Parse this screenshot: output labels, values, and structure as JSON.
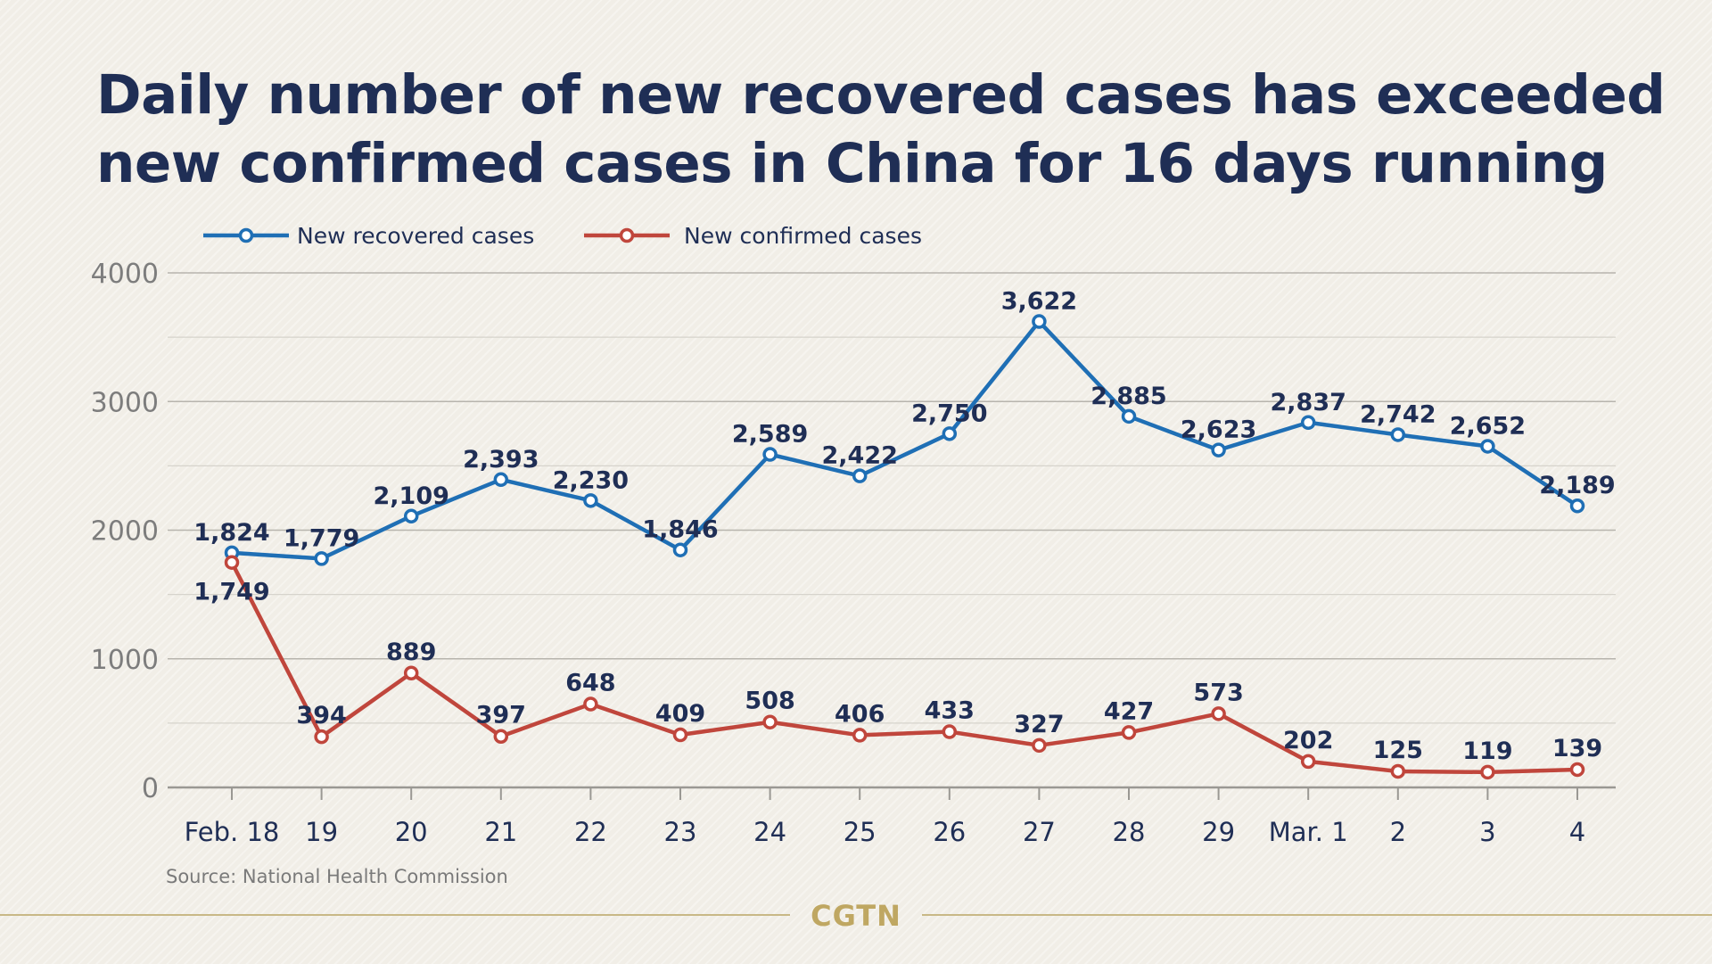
{
  "title_lines": [
    "Daily number of new recovered cases has exceeded",
    "new confirmed cases in China for 16 days running"
  ],
  "source": "Source: National Health Commission",
  "brand": "CGTN",
  "colors": {
    "recovered": "#1f6fb5",
    "confirmed": "#c0463c",
    "title": "#1f2e55",
    "brand": "#bfa762"
  },
  "chart_data": {
    "type": "line",
    "title": "Daily number of new recovered cases has exceeded new confirmed cases in China for 16 days running",
    "xlabel": "",
    "ylabel": "",
    "categories": [
      "Feb. 18",
      "19",
      "20",
      "21",
      "22",
      "23",
      "24",
      "25",
      "26",
      "27",
      "28",
      "29",
      "Mar. 1",
      "2",
      "3",
      "4"
    ],
    "ylim": [
      0,
      4000
    ],
    "yticks": [
      0,
      1000,
      2000,
      3000,
      4000
    ],
    "ytick_labels": [
      "0",
      "1000",
      "2000",
      "3000",
      "4000"
    ],
    "grid": true,
    "legend_position": "top-left",
    "series": [
      {
        "name": "New recovered cases",
        "color": "#1f6fb5",
        "values": [
          1824,
          1779,
          2109,
          2393,
          2230,
          1846,
          2589,
          2422,
          2750,
          3622,
          2885,
          2623,
          2837,
          2742,
          2652,
          2189
        ],
        "labels": [
          "1,824",
          "1,779",
          "2,109",
          "2,393",
          "2,230",
          "1,846",
          "2,589",
          "2,422",
          "2,750",
          "3,622",
          "2,885",
          "2,623",
          "2,837",
          "2,742",
          "2,652",
          "2,189"
        ]
      },
      {
        "name": "New confirmed cases",
        "color": "#c0463c",
        "values": [
          1749,
          394,
          889,
          397,
          648,
          409,
          508,
          406,
          433,
          327,
          427,
          573,
          202,
          125,
          119,
          139
        ],
        "labels": [
          "1,749",
          "394",
          "889",
          "397",
          "648",
          "409",
          "508",
          "406",
          "433",
          "327",
          "427",
          "573",
          "202",
          "125",
          "119",
          "139"
        ]
      }
    ]
  }
}
